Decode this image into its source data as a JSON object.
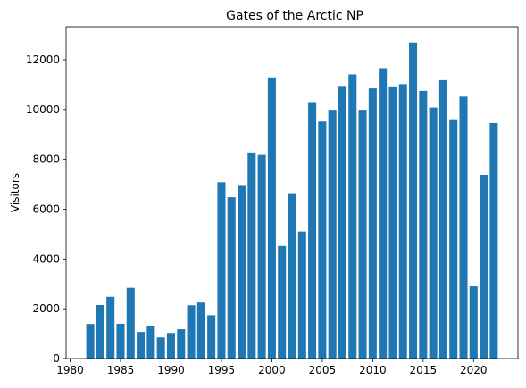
{
  "chart_data": {
    "type": "bar",
    "title": "Gates of the Arctic NP",
    "xlabel": "",
    "ylabel": "Visitors",
    "x": [
      1982,
      1983,
      1984,
      1985,
      1986,
      1987,
      1988,
      1989,
      1990,
      1991,
      1992,
      1993,
      1994,
      1995,
      1996,
      1997,
      1998,
      1999,
      2000,
      2001,
      2002,
      2003,
      2004,
      2005,
      2006,
      2007,
      2008,
      2009,
      2010,
      2011,
      2012,
      2013,
      2014,
      2015,
      2016,
      2017,
      2018,
      2019,
      2020,
      2021,
      2022
    ],
    "values": [
      1390,
      2150,
      2480,
      1400,
      2840,
      1070,
      1300,
      850,
      1030,
      1180,
      2140,
      2250,
      1740,
      7080,
      6480,
      6970,
      8280,
      8180,
      11290,
      4520,
      6640,
      5100,
      10300,
      9520,
      9990,
      10950,
      11410,
      9990,
      10850,
      11660,
      10930,
      11020,
      12690,
      10750,
      10080,
      11180,
      9610,
      10520,
      2900,
      7380,
      9460
    ],
    "xlim": [
      1979.6,
      2024.4
    ],
    "ylim": [
      0,
      13325
    ],
    "xticks": [
      1980,
      1985,
      1990,
      1995,
      2000,
      2005,
      2010,
      2015,
      2020
    ],
    "yticks": [
      0,
      2000,
      4000,
      6000,
      8000,
      10000,
      12000
    ],
    "bar_color": "#1f77b4",
    "grid": false,
    "legend": "none"
  }
}
